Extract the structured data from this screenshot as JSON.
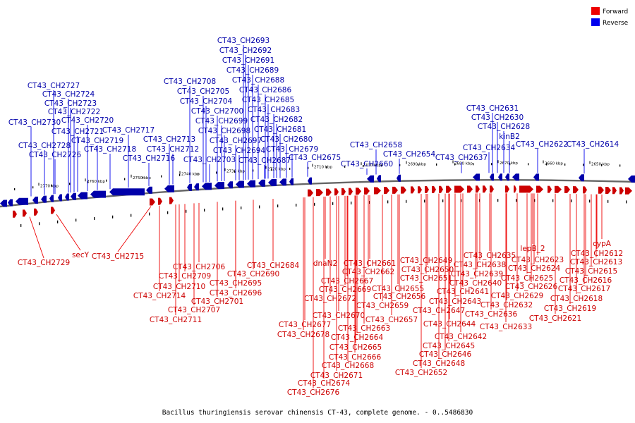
{
  "caption": "Bacillus thuringiensis serovar chinensis CT-43, complete genome. - 0..5486830",
  "legend": [
    {
      "label": "Forward",
      "color": "#ee0000"
    },
    {
      "label": "Reverse",
      "color": "#0000ee"
    }
  ],
  "ticks": [
    "2770 kbp",
    "2760 kbp",
    "2750 kbp",
    "2740 kbp",
    "2730 kbp",
    "2720 kbp",
    "2710 kbp",
    "2700 kbp",
    "2690 kbp",
    "2680 kbp",
    "2670 kbp",
    "2660 kbp",
    "2650 kbp"
  ],
  "reverse_labels": [
    "CT43_CH2693",
    "CT43_CH2692",
    "CT43_CH2691",
    "CT43_CH2689",
    "CT43_CH2688",
    "CT43_CH2708",
    "CT43_CH2686",
    "CT43_CH2705",
    "CT43_CH2685",
    "CT43_CH2704",
    "CT43_CH2683",
    "CT43_CH2700",
    "CT43_CH2682",
    "CT43_CH2699",
    "CT43_CH2681",
    "CT43_CH2698",
    "CT43_CH2680",
    "CT43_CH2697",
    "CT43_CH2694",
    "CT43_CH2679",
    "CT43_CH2703",
    "CT43_CH2687",
    "CT43_CH2675",
    "CT43_CH2727",
    "CT43_CH2724",
    "CT43_CH2723",
    "CT43_CH2722",
    "CT43_CH2720",
    "CT43_CH2730",
    "CT43_CH2721",
    "CT43_CH2717",
    "CT43_CH2719",
    "CT43_CH2728",
    "CT43_CH2718",
    "CT43_CH2726",
    "CT43_CH2713",
    "CT43_CH2712",
    "CT43_CH2716",
    "CT43_CH2658",
    "CT43_CH2654",
    "CT43_CH2660",
    "CT43_CH2631",
    "CT43_CH2630",
    "CT43_CH2628",
    "kinB2",
    "CT43_CH2634",
    "CT43_CH2637",
    "CT43_CH2622",
    "CT43_CH2614"
  ],
  "forward_labels": [
    "CT43_CH2729",
    "secY",
    "CT43_CH2715",
    "CT43_CH2706",
    "CT43_CH2709",
    "CT43_CH2710",
    "CT43_CH2714",
    "CT43_CH2707",
    "CT43_CH2711",
    "CT43_CH2701",
    "CT43_CH2695",
    "CT43_CH2696",
    "CT43_CH2690",
    "CT43_CH2684",
    "dnaN2",
    "CT43_CH2661",
    "CT43_CH2662",
    "CT43_CH2667",
    "CT43_CH2669",
    "CT43_CH2672",
    "CT43_CH2655",
    "CT43_CH2656",
    "CT43_CH2659",
    "CT43_CH2670",
    "CT43_CH2657",
    "CT43_CH2677",
    "CT43_CH2663",
    "CT43_CH2678",
    "CT43_CH2664",
    "CT43_CH2665",
    "CT43_CH2666",
    "CT43_CH2668",
    "CT43_CH2671",
    "CT43_CH2674",
    "CT43_CH2676",
    "CT43_CH2649",
    "CT43_CH2650",
    "CT43_CH2651",
    "CT43_CH2635",
    "CT43_CH2638",
    "CT43_CH2639",
    "CT43_CH2640",
    "CT43_CH2641",
    "CT43_CH2643",
    "CT43_CH2647",
    "CT43_CH2644",
    "CT43_CH2642",
    "CT43_CH2645",
    "CT43_CH2646",
    "CT43_CH2648",
    "CT43_CH2652",
    "CT43_CH2636",
    "CT43_CH2632",
    "CT43_CH2633",
    "lepB_2",
    "CT43_CH2623",
    "CT43_CH2624",
    "CT43_CH2625",
    "CT43_CH2626",
    "CT43_CH2629",
    "cypA",
    "CT43_CH2612",
    "CT43_CH2613",
    "CT43_CH2615",
    "CT43_CH2616",
    "CT43_CH2617",
    "CT43_CH2618",
    "CT43_CH2619",
    "CT43_CH2621"
  ]
}
